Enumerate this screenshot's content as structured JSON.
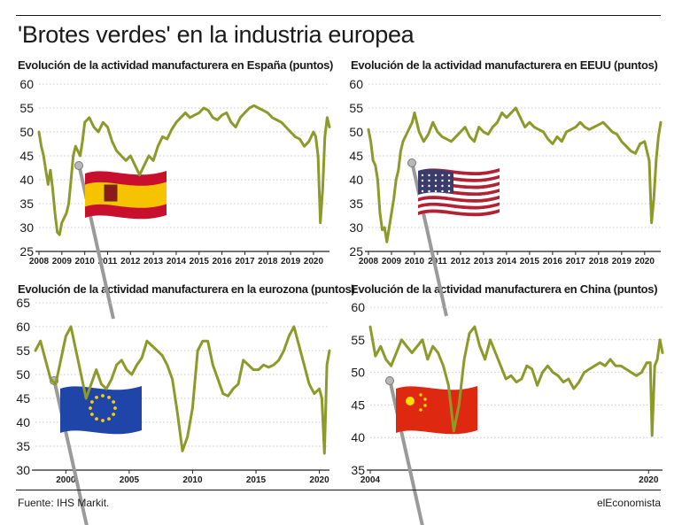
{
  "title": "'Brotes verdes' en la industria europea",
  "footer": {
    "source": "Fuente: IHS Markit.",
    "brand": "elEconomista"
  },
  "colors": {
    "line": "#8c9a2a",
    "grid": "#c9c9c9",
    "axis": "#222222"
  },
  "chart_data": [
    {
      "type": "line",
      "title": "Evolución de la actividad manufacturera en España (puntos)",
      "flag_icon": "spain-flag-icon",
      "ylim": [
        25,
        60
      ],
      "yticks": [
        25,
        30,
        35,
        40,
        45,
        50,
        55,
        60
      ],
      "xlim": [
        2008.0,
        2020.7
      ],
      "xticks": [
        2008,
        2009,
        2010,
        2011,
        2012,
        2013,
        2014,
        2015,
        2016,
        2017,
        2018,
        2019,
        2020
      ],
      "x": [
        2008.0,
        2008.1,
        2008.2,
        2008.3,
        2008.4,
        2008.5,
        2008.6,
        2008.7,
        2008.8,
        2008.9,
        2009.0,
        2009.1,
        2009.2,
        2009.3,
        2009.4,
        2009.5,
        2009.6,
        2009.7,
        2009.8,
        2009.9,
        2010.0,
        2010.2,
        2010.4,
        2010.6,
        2010.8,
        2011.0,
        2011.2,
        2011.4,
        2011.6,
        2011.8,
        2012.0,
        2012.2,
        2012.4,
        2012.6,
        2012.8,
        2013.0,
        2013.2,
        2013.4,
        2013.6,
        2013.8,
        2014.0,
        2014.2,
        2014.4,
        2014.6,
        2014.8,
        2015.0,
        2015.2,
        2015.4,
        2015.6,
        2015.8,
        2016.0,
        2016.2,
        2016.4,
        2016.6,
        2016.8,
        2017.0,
        2017.2,
        2017.4,
        2017.6,
        2017.8,
        2018.0,
        2018.2,
        2018.4,
        2018.6,
        2018.8,
        2019.0,
        2019.2,
        2019.4,
        2019.6,
        2019.8,
        2020.0,
        2020.1,
        2020.2,
        2020.3,
        2020.4,
        2020.5,
        2020.6,
        2020.7
      ],
      "values": [
        50,
        47,
        45,
        42,
        39,
        42,
        38,
        33,
        29,
        28.5,
        31,
        32,
        33,
        35,
        40,
        45,
        47,
        46,
        45,
        48,
        52,
        53,
        51,
        50,
        52,
        51,
        48,
        46,
        45,
        44,
        45,
        43,
        41,
        43,
        45,
        44,
        47,
        49,
        48.5,
        50.5,
        52,
        53,
        54,
        53,
        53.5,
        54,
        55,
        54.5,
        53,
        52.5,
        53.5,
        54,
        52,
        51,
        53,
        54,
        55,
        55.5,
        55,
        54.5,
        54,
        53,
        52.5,
        52,
        51,
        50,
        49,
        48.5,
        47,
        48,
        50,
        49,
        45,
        31,
        38,
        49,
        53,
        51
      ]
    },
    {
      "type": "line",
      "title": "Evolución de la actividad manufacturera en EEUU (puntos)",
      "flag_icon": "usa-flag-icon",
      "ylim": [
        25,
        60
      ],
      "yticks": [
        25,
        30,
        35,
        40,
        45,
        50,
        55,
        60
      ],
      "xlim": [
        2008.0,
        2020.7
      ],
      "xticks": [
        2008,
        2009,
        2010,
        2011,
        2012,
        2013,
        2014,
        2015,
        2016,
        2017,
        2018,
        2019,
        2020
      ],
      "x": [
        2008.0,
        2008.1,
        2008.2,
        2008.3,
        2008.4,
        2008.5,
        2008.6,
        2008.7,
        2008.8,
        2008.9,
        2009.0,
        2009.1,
        2009.2,
        2009.3,
        2009.4,
        2009.5,
        2009.6,
        2009.7,
        2009.8,
        2009.9,
        2010.0,
        2010.2,
        2010.4,
        2010.6,
        2010.8,
        2011.0,
        2011.2,
        2011.4,
        2011.6,
        2011.8,
        2012.0,
        2012.2,
        2012.4,
        2012.6,
        2012.8,
        2013.0,
        2013.2,
        2013.4,
        2013.6,
        2013.8,
        2014.0,
        2014.2,
        2014.4,
        2014.6,
        2014.8,
        2015.0,
        2015.2,
        2015.4,
        2015.6,
        2015.8,
        2016.0,
        2016.2,
        2016.4,
        2016.6,
        2016.8,
        2017.0,
        2017.2,
        2017.4,
        2017.6,
        2017.8,
        2018.0,
        2018.2,
        2018.4,
        2018.6,
        2018.8,
        2019.0,
        2019.2,
        2019.4,
        2019.6,
        2019.8,
        2020.0,
        2020.1,
        2020.2,
        2020.3,
        2020.4,
        2020.5,
        2020.6,
        2020.7
      ],
      "values": [
        50.5,
        48,
        44,
        43,
        40,
        33,
        29.5,
        30,
        27,
        30,
        33,
        36,
        40,
        42,
        46,
        48,
        49,
        50,
        51,
        52,
        54,
        50,
        48,
        49.5,
        52,
        50,
        49,
        48.5,
        48,
        49,
        50,
        51,
        49,
        48,
        51,
        50,
        49.5,
        51,
        52,
        54,
        53,
        54,
        55,
        53,
        51,
        52,
        51,
        50.5,
        50,
        48.5,
        47.5,
        49,
        48,
        50,
        50.5,
        51,
        52,
        51,
        50.5,
        51,
        51.5,
        52,
        51,
        50,
        49.5,
        48,
        47,
        46,
        45.5,
        47.5,
        48,
        46,
        44,
        31,
        36,
        44,
        49,
        52
      ]
    },
    {
      "type": "line",
      "title": "Evolución de la actividad manufacturera en la eurozona (puntos)",
      "flag_icon": "eu-flag-icon",
      "ylim": [
        30,
        65
      ],
      "yticks": [
        30,
        35,
        40,
        45,
        50,
        55,
        60,
        65
      ],
      "xlim": [
        1997.6,
        2020.8
      ],
      "xticks": [
        2000,
        2005,
        2010,
        2015,
        2020
      ],
      "x": [
        1997.6,
        1998.0,
        1998.4,
        1998.8,
        1999.2,
        1999.6,
        2000.0,
        2000.4,
        2000.8,
        2001.2,
        2001.6,
        2002.0,
        2002.4,
        2002.8,
        2003.2,
        2003.6,
        2004.0,
        2004.4,
        2004.8,
        2005.2,
        2005.6,
        2006.0,
        2006.4,
        2006.8,
        2007.2,
        2007.6,
        2008.0,
        2008.4,
        2008.8,
        2009.2,
        2009.6,
        2010.0,
        2010.4,
        2010.8,
        2011.2,
        2011.6,
        2012.0,
        2012.4,
        2012.8,
        2013.2,
        2013.6,
        2014.0,
        2014.4,
        2014.8,
        2015.2,
        2015.6,
        2016.0,
        2016.4,
        2016.8,
        2017.2,
        2017.6,
        2018.0,
        2018.4,
        2018.8,
        2019.2,
        2019.6,
        2020.0,
        2020.2,
        2020.4,
        2020.6,
        2020.8
      ],
      "values": [
        55,
        57,
        53,
        49,
        48,
        53,
        58,
        60,
        55,
        50,
        45,
        48,
        51,
        48,
        47,
        49,
        52,
        53,
        51,
        50,
        52,
        53.5,
        57,
        56,
        55,
        54,
        52,
        49,
        42,
        34,
        37,
        43,
        55,
        57,
        57,
        52,
        49,
        46,
        45.5,
        47,
        48,
        53,
        52,
        51,
        51,
        52,
        51.5,
        52,
        53,
        55,
        58,
        60,
        56,
        52,
        48,
        46,
        47,
        45,
        33.5,
        52,
        55
      ]
    },
    {
      "type": "line",
      "title": "Evolución de la actividad manufacturera en China (puntos)",
      "flag_icon": "china-flag-icon",
      "ylim": [
        35,
        60
      ],
      "yticks": [
        35,
        40,
        45,
        50,
        55,
        60
      ],
      "xlim": [
        2004.0,
        2020.8
      ],
      "xticks": [
        2004,
        2020
      ],
      "x": [
        2004.0,
        2004.3,
        2004.6,
        2004.9,
        2005.2,
        2005.5,
        2005.8,
        2006.1,
        2006.4,
        2006.7,
        2007.0,
        2007.3,
        2007.6,
        2007.9,
        2008.2,
        2008.5,
        2008.8,
        2009.1,
        2009.4,
        2009.7,
        2010.0,
        2010.3,
        2010.6,
        2010.9,
        2011.2,
        2011.5,
        2011.8,
        2012.1,
        2012.4,
        2012.7,
        2013.0,
        2013.3,
        2013.6,
        2013.9,
        2014.2,
        2014.5,
        2014.8,
        2015.1,
        2015.4,
        2015.7,
        2016.0,
        2016.3,
        2016.6,
        2016.9,
        2017.2,
        2017.5,
        2017.8,
        2018.1,
        2018.4,
        2018.7,
        2019.0,
        2019.3,
        2019.6,
        2019.9,
        2020.1,
        2020.2,
        2020.35,
        2020.5,
        2020.65,
        2020.8
      ],
      "values": [
        57,
        52.5,
        54,
        52,
        51,
        53,
        55,
        54,
        53,
        54,
        55,
        52,
        54,
        53,
        51,
        48,
        41,
        45,
        52,
        56,
        57,
        54,
        52,
        55,
        53,
        51,
        49,
        49.5,
        48.5,
        49,
        51,
        50.5,
        48,
        50,
        51,
        50,
        49.5,
        48.5,
        49,
        47.5,
        48.5,
        50,
        50.5,
        51,
        51.5,
        51,
        52,
        51,
        51,
        50.5,
        50,
        49.5,
        50,
        51.5,
        51.5,
        40.3,
        51,
        52,
        55,
        53
      ]
    }
  ]
}
